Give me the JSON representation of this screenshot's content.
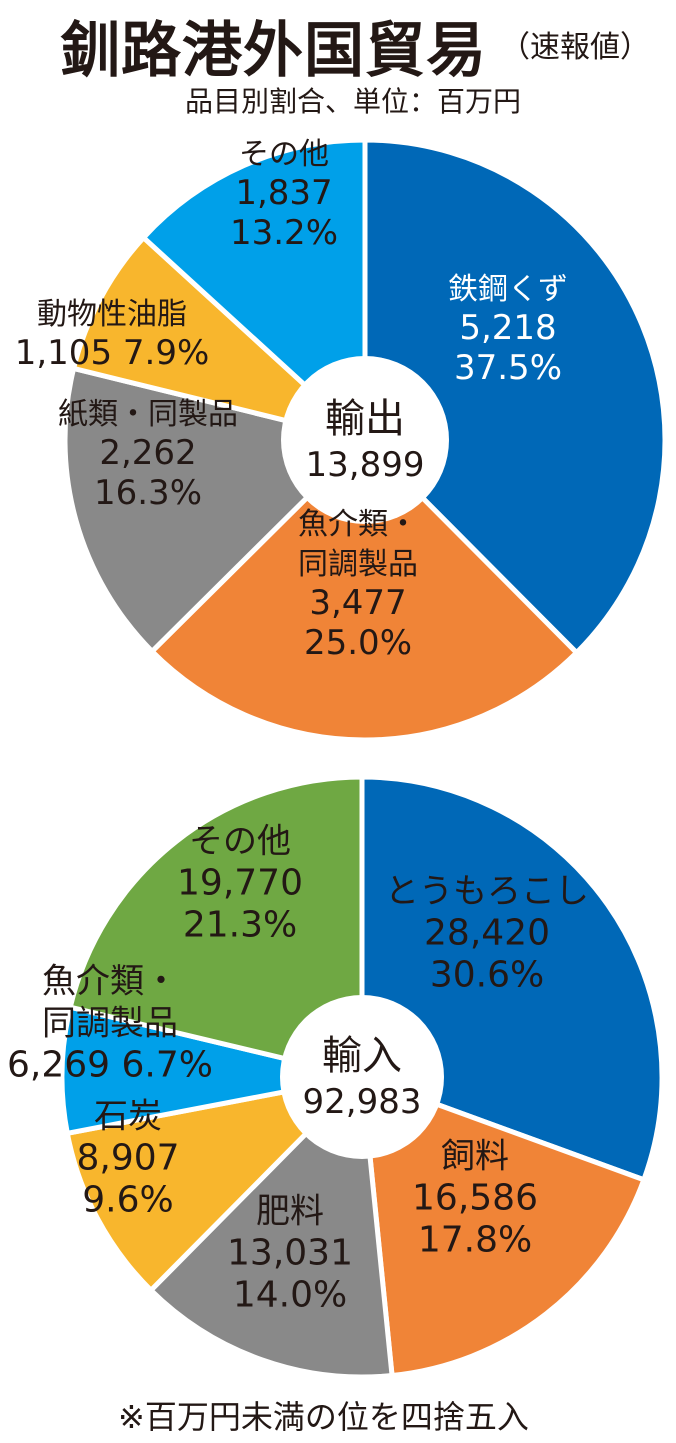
{
  "header": {
    "title": "釧路港外国貿易",
    "subtitle": "（速報値）",
    "unit_note": "品目別割合、単位：百万円"
  },
  "footnote": "※百万円未満の位を四捨五入",
  "chart_data": [
    {
      "type": "pie",
      "title": "輸出",
      "total_label": "13,899",
      "total": 13899,
      "slices": [
        {
          "name": "鉄鋼くず",
          "value": 5218,
          "value_label": "5,218",
          "percent": "37.5%",
          "color": "#0068b7"
        },
        {
          "name": "魚介類・同調製品",
          "value": 3477,
          "value_label": "3,477",
          "percent": "25.0%",
          "color": "#f08437"
        },
        {
          "name": "紙類・同製品",
          "value": 2262,
          "value_label": "2,262",
          "percent": "16.3%",
          "color": "#898989"
        },
        {
          "name": "動物性油脂",
          "value": 1105,
          "value_label": "1,105",
          "percent": "7.9%",
          "color": "#f8b62d"
        },
        {
          "name": "その他",
          "value": 1837,
          "value_label": "1,837",
          "percent": "13.2%",
          "color": "#00a0e9"
        }
      ]
    },
    {
      "type": "pie",
      "title": "輸入",
      "total_label": "92,983",
      "total": 92983,
      "slices": [
        {
          "name": "とうもろこし",
          "value": 28420,
          "value_label": "28,420",
          "percent": "30.6%",
          "color": "#0068b7"
        },
        {
          "name": "飼料",
          "value": 16586,
          "value_label": "16,586",
          "percent": "17.8%",
          "color": "#f08437"
        },
        {
          "name": "肥料",
          "value": 13031,
          "value_label": "13,031",
          "percent": "14.0%",
          "color": "#898989"
        },
        {
          "name": "石炭",
          "value": 8907,
          "value_label": "8,907",
          "percent": "9.6%",
          "color": "#f8b62d"
        },
        {
          "name": "魚介類・同調製品",
          "value": 6269,
          "value_label": "6,269",
          "percent": "6.7%",
          "color": "#00a0e9"
        },
        {
          "name": "その他",
          "value": 19770,
          "value_label": "19,770",
          "percent": "21.3%",
          "color": "#6fa843"
        }
      ]
    }
  ]
}
